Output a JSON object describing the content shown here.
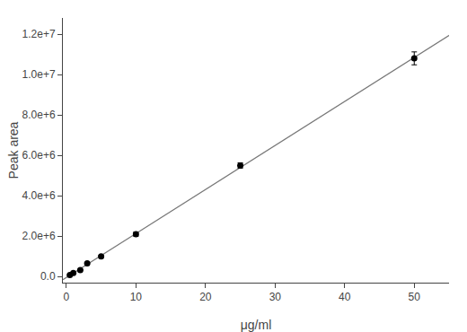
{
  "chart_data": {
    "type": "scatter",
    "xlabel": "μg/ml",
    "ylabel": "Peak area",
    "series": [
      {
        "type": "line",
        "x": [
          -0.5,
          56
        ],
        "values": [
          -157559.8,
          12149027.5
        ],
        "color": "#777777",
        "line_style": "solid"
      },
      {
        "type": "scatter",
        "x": [
          0.5,
          1.0,
          2.0,
          3.0,
          5.0,
          10.0,
          25.0,
          50.0
        ],
        "values": [
          80000,
          180000,
          320000,
          650000,
          1000000,
          2100000,
          5500000,
          10800000
        ],
        "yerr": [
          15000,
          20000,
          25000,
          35000,
          45000,
          100000,
          130000,
          320000
        ],
        "color": "black",
        "marker": "circle"
      }
    ],
    "xlim": [
      -0.5,
      55
    ],
    "ylim": [
      -300000,
      12800000
    ],
    "xticks": [
      0,
      10,
      20,
      30,
      40,
      50
    ],
    "yticks": [
      {
        "value": 0,
        "label": "0.0"
      },
      {
        "value": 2000000,
        "label": "2.0e+6"
      },
      {
        "value": 4000000,
        "label": "4.0e+6"
      },
      {
        "value": 6000000,
        "label": "6.0e+6"
      },
      {
        "value": 8000000,
        "label": "8.0e+6"
      },
      {
        "value": 10000000,
        "label": "1.0e+7"
      },
      {
        "value": 12000000,
        "label": "1.2e+7"
      }
    ],
    "grid": false
  }
}
